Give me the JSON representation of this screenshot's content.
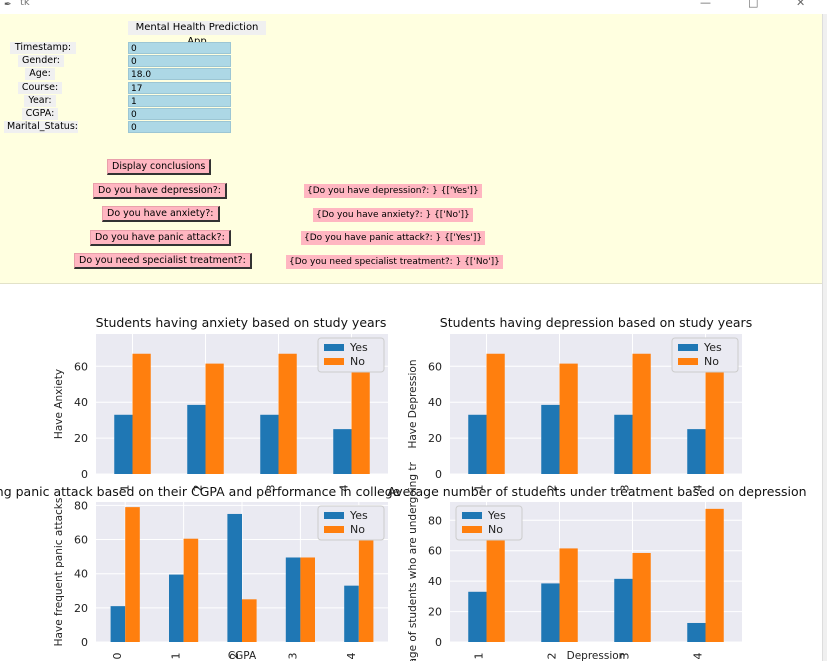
{
  "window": {
    "title": "tk"
  },
  "app": {
    "title": "Mental Health Prediction App",
    "fields": [
      {
        "label": "Timestamp:",
        "value": "0"
      },
      {
        "label": "Gender:",
        "value": "0"
      },
      {
        "label": "Age:",
        "value": "18.0"
      },
      {
        "label": "Course:",
        "value": "17"
      },
      {
        "label": "Year:",
        "value": "1"
      },
      {
        "label": "CGPA:",
        "value": "0"
      },
      {
        "label": "Marital_Status:",
        "value": "0"
      }
    ],
    "display_button": "Display conclusions",
    "questions": [
      {
        "button": "Do you have depression?:",
        "result": "{Do you have depression?: } {['Yes']}"
      },
      {
        "button": "Do you have anxiety?:",
        "result": "{Do you have anxiety?: } {['No']}"
      },
      {
        "button": "Do you have panic attack?:",
        "result": "{Do you have panic attack?: } {['Yes']}"
      },
      {
        "button": "Do you need specialist treatment?:",
        "result": "{Do you need specialist treatment?: } {['No']}"
      }
    ]
  },
  "colors": {
    "yes": "#1f77b4",
    "no": "#ff7f0e",
    "panel_bg": "#ffffe0",
    "entry_bg": "#add8e6",
    "button_bg": "#ffb6c1",
    "plot_bg": "#eaeaf2"
  },
  "chart_data": [
    {
      "type": "bar",
      "title": "Students having anxiety based on study years",
      "ylabel": "Have Anxiety",
      "categories": [
        "1",
        "2",
        "3",
        "4"
      ],
      "series": [
        {
          "name": "Yes",
          "values": [
            33,
            38.5,
            33,
            25
          ]
        },
        {
          "name": "No",
          "values": [
            67,
            61.5,
            67,
            75
          ]
        }
      ],
      "ylim": [
        0,
        78
      ],
      "yticks": [
        0,
        20,
        40,
        60
      ],
      "legend": "top-right"
    },
    {
      "type": "bar",
      "title": "Students having depression based on study years",
      "ylabel": "Have Depression",
      "categories": [
        "1",
        "2",
        "3",
        "4"
      ],
      "series": [
        {
          "name": "Yes",
          "values": [
            33,
            38.5,
            33,
            25
          ]
        },
        {
          "name": "No",
          "values": [
            67,
            61.5,
            67,
            75
          ]
        }
      ],
      "ylim": [
        0,
        78
      ],
      "yticks": [
        0,
        20,
        40,
        60
      ],
      "legend": "top-right"
    },
    {
      "type": "bar",
      "title": "Students having panic attack based on their CGPA and performance in college",
      "ylabel": "Have frequent panic attacks",
      "xlabel": "CGPA",
      "categories": [
        "0",
        "1",
        "2",
        "3",
        "4"
      ],
      "series": [
        {
          "name": "Yes",
          "values": [
            21,
            39.5,
            75,
            49.5,
            33
          ]
        },
        {
          "name": "No",
          "values": [
            79,
            60.5,
            25,
            49.5,
            67
          ]
        }
      ],
      "ylim": [
        0,
        82
      ],
      "yticks": [
        0,
        20,
        40,
        60,
        80
      ],
      "legend": "top-right"
    },
    {
      "type": "bar",
      "title": "Average number of students under treatment based on depression",
      "ylabel": "entage of students who are undergoing tr",
      "xlabel": "Depression",
      "categories": [
        "1",
        "2",
        "3",
        "4"
      ],
      "series": [
        {
          "name": "Yes",
          "values": [
            33,
            38.5,
            41.5,
            12.5
          ]
        },
        {
          "name": "No",
          "values": [
            67,
            61.5,
            58.5,
            87.5
          ]
        }
      ],
      "ylim": [
        0,
        92
      ],
      "yticks": [
        0,
        20,
        40,
        60,
        80
      ],
      "legend": "top-left"
    }
  ]
}
